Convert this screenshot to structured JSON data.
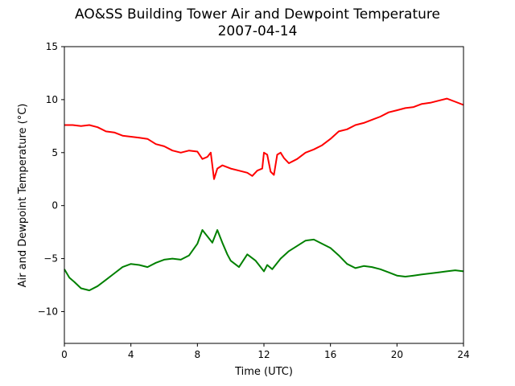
{
  "chart_data": {
    "type": "line",
    "title": "AO&SS Building Tower Air and Dewpoint Temperature",
    "subtitle": "2007-04-14",
    "xlabel": "Time (UTC)",
    "ylabel": "Air and Dewpoint Temperature (°C)",
    "xlim": [
      0,
      24
    ],
    "ylim": [
      -13,
      15
    ],
    "xticks": [
      0,
      4,
      8,
      12,
      16,
      20,
      24
    ],
    "yticks": [
      -10,
      -5,
      0,
      5,
      10,
      15
    ],
    "grid": false,
    "legend": "none",
    "series": [
      {
        "color": "#ff0000",
        "x": [
          0,
          0.5,
          1,
          1.5,
          2,
          2.5,
          3,
          3.5,
          4,
          4.5,
          5,
          5.5,
          6,
          6.5,
          7,
          7.5,
          8,
          8.3,
          8.6,
          8.8,
          9,
          9.2,
          9.5,
          10,
          10.5,
          11,
          11.3,
          11.6,
          11.9,
          12,
          12.2,
          12.4,
          12.6,
          12.8,
          13,
          13.2,
          13.5,
          14,
          14.5,
          15,
          15.5,
          16,
          16.5,
          17,
          17.5,
          18,
          18.5,
          19,
          19.5,
          20,
          20.5,
          21,
          21.5,
          22,
          22.5,
          23,
          23.5,
          24
        ],
        "y": [
          7.6,
          7.6,
          7.5,
          7.6,
          7.4,
          7.0,
          6.9,
          6.6,
          6.5,
          6.4,
          6.3,
          5.8,
          5.6,
          5.2,
          5.0,
          5.2,
          5.1,
          4.4,
          4.6,
          5.0,
          2.5,
          3.5,
          3.8,
          3.5,
          3.3,
          3.1,
          2.8,
          3.3,
          3.5,
          5.0,
          4.8,
          3.2,
          2.9,
          4.8,
          5.0,
          4.5,
          4.0,
          4.4,
          5.0,
          5.3,
          5.7,
          6.3,
          7.0,
          7.2,
          7.6,
          7.8,
          8.1,
          8.4,
          8.8,
          9.0,
          9.2,
          9.3,
          9.6,
          9.7,
          9.9,
          10.1,
          9.8,
          9.5
        ],
        "label": ""
      },
      {
        "color": "#008000",
        "x": [
          0,
          0.3,
          0.6,
          1,
          1.5,
          2,
          2.5,
          3,
          3.5,
          4,
          4.5,
          5,
          5.5,
          6,
          6.5,
          7,
          7.5,
          8,
          8.3,
          8.6,
          8.9,
          9.2,
          9.5,
          9.8,
          10,
          10.5,
          11,
          11.5,
          12,
          12.2,
          12.5,
          13,
          13.5,
          14,
          14.5,
          15,
          15.5,
          16,
          16.5,
          17,
          17.5,
          18,
          18.5,
          19,
          19.5,
          20,
          20.5,
          21,
          21.5,
          22,
          22.5,
          23,
          23.5,
          24
        ],
        "y": [
          -6.0,
          -6.8,
          -7.2,
          -7.8,
          -8.0,
          -7.6,
          -7.0,
          -6.4,
          -5.8,
          -5.5,
          -5.6,
          -5.8,
          -5.4,
          -5.1,
          -5.0,
          -5.1,
          -4.7,
          -3.6,
          -2.3,
          -2.9,
          -3.5,
          -2.3,
          -3.5,
          -4.6,
          -5.2,
          -5.8,
          -4.6,
          -5.2,
          -6.2,
          -5.6,
          -6.0,
          -5.0,
          -4.3,
          -3.8,
          -3.3,
          -3.2,
          -3.6,
          -4.0,
          -4.7,
          -5.5,
          -5.9,
          -5.7,
          -5.8,
          -6.0,
          -6.3,
          -6.6,
          -6.7,
          -6.6,
          -6.5,
          -6.4,
          -6.3,
          -6.2,
          -6.1,
          -6.2
        ],
        "label": ""
      }
    ]
  }
}
